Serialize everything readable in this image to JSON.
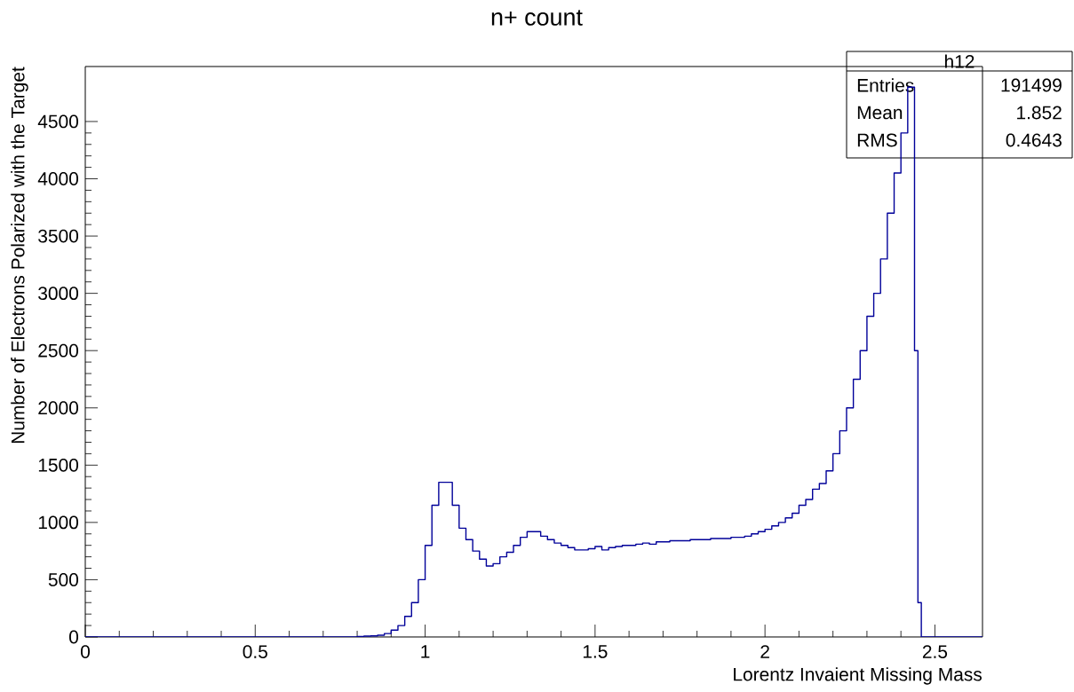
{
  "chart_data": {
    "type": "histogram",
    "title": "n+ count",
    "xlabel": "Lorentz Invaient Missing Mass",
    "ylabel": "Number of Electrons Polarized with the Target",
    "bins": [
      0,
      0.8,
      0.82,
      0.84,
      0.86,
      0.88,
      0.9,
      0.92,
      0.94,
      0.96,
      0.98,
      1.0,
      1.02,
      1.04,
      1.06,
      1.08,
      1.1,
      1.12,
      1.14,
      1.16,
      1.18,
      1.2,
      1.22,
      1.24,
      1.26,
      1.28,
      1.3,
      1.32,
      1.34,
      1.36,
      1.38,
      1.4,
      1.42,
      1.44,
      1.46,
      1.48,
      1.5,
      1.52,
      1.54,
      1.56,
      1.58,
      1.6,
      1.62,
      1.64,
      1.66,
      1.68,
      1.7,
      1.72,
      1.74,
      1.76,
      1.78,
      1.8,
      1.82,
      1.84,
      1.86,
      1.88,
      1.9,
      1.92,
      1.94,
      1.96,
      1.98,
      2.0,
      2.02,
      2.04,
      2.06,
      2.08,
      2.1,
      2.12,
      2.14,
      2.16,
      2.18,
      2.2,
      2.22,
      2.24,
      2.26,
      2.28,
      2.3,
      2.32,
      2.34,
      2.36,
      2.38,
      2.4,
      2.42,
      2.44,
      2.45,
      2.46,
      2.64
    ],
    "values": [
      0,
      5,
      8,
      10,
      15,
      30,
      60,
      100,
      180,
      300,
      500,
      800,
      1150,
      1350,
      1350,
      1150,
      950,
      850,
      750,
      680,
      620,
      640,
      700,
      740,
      800,
      870,
      920,
      920,
      880,
      850,
      820,
      800,
      780,
      760,
      760,
      770,
      790,
      760,
      780,
      790,
      800,
      800,
      810,
      820,
      810,
      830,
      830,
      840,
      840,
      840,
      850,
      850,
      850,
      860,
      860,
      860,
      870,
      870,
      880,
      900,
      920,
      940,
      970,
      1000,
      1040,
      1080,
      1150,
      1200,
      1290,
      1340,
      1450,
      1600,
      1800,
      2000,
      2250,
      2500,
      2800,
      3000,
      3300,
      3700,
      4050,
      4400,
      4800,
      2500,
      300,
      0
    ],
    "color": "#000099",
    "xlim": [
      0,
      2.64
    ],
    "ylim": [
      0,
      4980
    ],
    "xticks": [
      0,
      0.5,
      1,
      1.5,
      2,
      2.5
    ],
    "yticks": [
      0,
      500,
      1000,
      1500,
      2000,
      2500,
      3000,
      3500,
      4000,
      4500
    ],
    "grid": false,
    "annotations": [
      "h12",
      "Entries",
      "191499",
      "Mean",
      "1.852",
      "RMS",
      "0.4643"
    ]
  }
}
